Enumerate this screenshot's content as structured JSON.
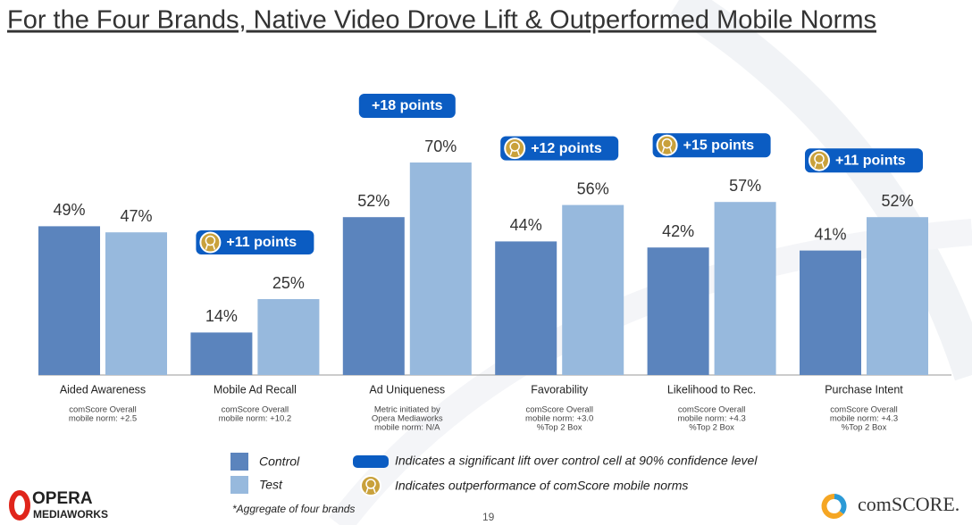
{
  "chart_data": {
    "type": "bar",
    "title": "For the Four Brands, Native Video Drove Lift & Outperformed Mobile Norms",
    "categories": [
      "Aided Awareness",
      "Mobile Ad Recall",
      "Ad Uniqueness",
      "Favorability",
      "Likelihood to Rec.",
      "Purchase Intent"
    ],
    "category_notes": [
      [
        "comScore Overall",
        "mobile norm: +2.5"
      ],
      [
        "comScore Overall",
        "mobile norm: +10.2"
      ],
      [
        "Metric initiated by",
        "Opera Mediaworks",
        "mobile norm: N/A"
      ],
      [
        "comScore Overall",
        "mobile norm: +3.0",
        "%Top 2 Box"
      ],
      [
        "comScore Overall",
        "mobile norm: +4.3",
        "%Top 2 Box"
      ],
      [
        "comScore Overall",
        "mobile norm: +4.3",
        "%Top 2 Box"
      ]
    ],
    "series": [
      {
        "name": "Control",
        "color": "#5b84bd",
        "values": [
          49,
          14,
          52,
          44,
          42,
          41
        ],
        "value_labels": [
          "49%",
          "14%",
          "52%",
          "44%",
          "42%",
          "41%"
        ]
      },
      {
        "name": "Test",
        "color": "#97b9dd",
        "values": [
          47,
          25,
          70,
          56,
          57,
          52
        ],
        "value_labels": [
          "47%",
          "25%",
          "70%",
          "56%",
          "57%",
          "52%"
        ]
      }
    ],
    "lifts": [
      null,
      "+11 points",
      "+18 points",
      "+12 points",
      "+15 points",
      "+11 points"
    ],
    "norm_outperformed": [
      false,
      true,
      false,
      true,
      true,
      true
    ],
    "legend_notes": {
      "lift": "Indicates a significant lift over control cell at 90% confidence level",
      "norm": "Indicates outperformance of comScore mobile norms"
    },
    "footnote": "*Aggregate of four brands",
    "page_number": "19",
    "logos": {
      "opera": [
        "OPERA",
        "MEDIAWORKS"
      ],
      "comscore": "comSCORE."
    }
  }
}
